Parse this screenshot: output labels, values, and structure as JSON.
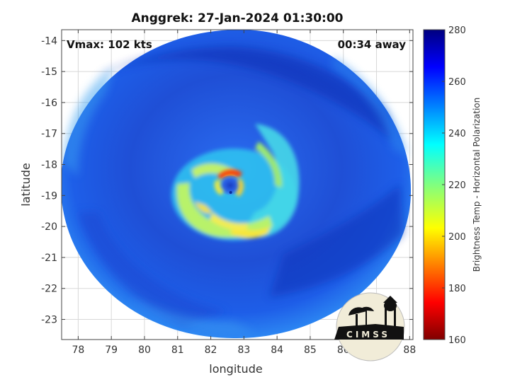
{
  "title": "Anggrek: 27-Jan-2024 01:30:00",
  "vmax_label": "Vmax: 102 kts",
  "time_offset_label": "00:34 away",
  "axes": {
    "xlabel": "longitude",
    "ylabel": "latitude",
    "xlim": [
      77.5,
      88.1
    ],
    "ylim": [
      -23.65,
      -13.65
    ],
    "xticks": [
      "78",
      "79",
      "80",
      "81",
      "82",
      "83",
      "84",
      "85",
      "86",
      "87",
      "88"
    ],
    "yticks": [
      "-14",
      "-15",
      "-16",
      "-17",
      "-18",
      "-19",
      "-20",
      "-21",
      "-22",
      "-23"
    ],
    "grid": true
  },
  "colorbar": {
    "label": "Brightness Temp - Horizontal Polarization",
    "range": [
      160,
      280
    ],
    "ticks": [
      "280",
      "260",
      "240",
      "220",
      "200",
      "180",
      "160"
    ],
    "colormap": "jet"
  },
  "storm": {
    "center_lon": 82.6,
    "center_lat": -18.9
  },
  "logo": {
    "text": "CIMSS",
    "icon": "cimss-observatory-logo"
  },
  "colors": {
    "swath_background": "#1e4ad8",
    "cold_ring": "#ff2a00",
    "spiral_band": "#9ef05a"
  }
}
